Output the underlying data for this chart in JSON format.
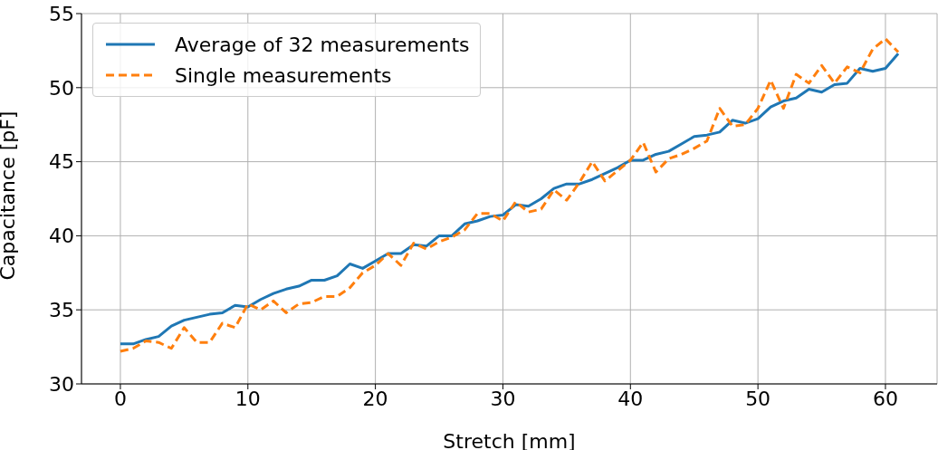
{
  "chart_data": {
    "type": "line",
    "xlabel": "Stretch [mm]",
    "ylabel": "Capacitance [pF]",
    "x": [
      0,
      1,
      2,
      3,
      4,
      5,
      6,
      7,
      8,
      9,
      10,
      11,
      12,
      13,
      14,
      15,
      16,
      17,
      18,
      19,
      20,
      21,
      22,
      23,
      24,
      25,
      26,
      27,
      28,
      29,
      30,
      31,
      32,
      33,
      34,
      35,
      36,
      37,
      38,
      39,
      40,
      41,
      42,
      43,
      44,
      45,
      46,
      47,
      48,
      49,
      50,
      51,
      52,
      53,
      54,
      55,
      56,
      57,
      58,
      59,
      60,
      61
    ],
    "series": [
      {
        "name": "Average of 32 measurements",
        "color": "#1f77b4",
        "line_style": "solid",
        "values": [
          32.7,
          32.7,
          33.0,
          33.2,
          33.9,
          34.3,
          34.5,
          34.7,
          34.8,
          35.3,
          35.2,
          35.7,
          36.1,
          36.4,
          36.6,
          37.0,
          37.0,
          37.3,
          38.1,
          37.8,
          38.3,
          38.8,
          38.8,
          39.4,
          39.3,
          40.0,
          40.0,
          40.8,
          41.0,
          41.3,
          41.4,
          42.1,
          42.0,
          42.5,
          43.2,
          43.5,
          43.5,
          43.8,
          44.2,
          44.6,
          45.1,
          45.1,
          45.5,
          45.7,
          46.2,
          46.7,
          46.8,
          47.0,
          47.8,
          47.6,
          47.9,
          48.7,
          49.1,
          49.3,
          49.9,
          49.7,
          50.2,
          50.3,
          51.3,
          51.1,
          51.3,
          52.3
        ]
      },
      {
        "name": "Single measurements",
        "color": "#ff7f0e",
        "line_style": "dashed",
        "values": [
          32.2,
          32.4,
          32.9,
          32.8,
          32.4,
          33.8,
          32.8,
          32.8,
          34.1,
          33.8,
          35.4,
          35.0,
          35.6,
          34.8,
          35.4,
          35.5,
          35.9,
          35.9,
          36.5,
          37.5,
          38.0,
          38.8,
          38.0,
          39.5,
          39.1,
          39.6,
          39.9,
          40.4,
          41.5,
          41.5,
          41.0,
          42.3,
          41.6,
          41.8,
          43.1,
          42.4,
          43.6,
          45.0,
          43.7,
          44.4,
          45.1,
          46.3,
          44.3,
          45.2,
          45.5,
          45.9,
          46.4,
          48.6,
          47.4,
          47.5,
          48.6,
          50.5,
          48.6,
          50.9,
          50.3,
          51.5,
          50.3,
          51.4,
          51.0,
          52.6,
          53.3,
          52.4
        ]
      }
    ],
    "xlim": [
      -3.05,
      64.05
    ],
    "xticks": [
      0,
      10,
      20,
      30,
      40,
      50,
      60
    ],
    "ylim": [
      30,
      55
    ],
    "yticks": [
      30,
      35,
      40,
      45,
      50,
      55
    ],
    "grid": true,
    "legend": "top left",
    "marker": "none"
  }
}
